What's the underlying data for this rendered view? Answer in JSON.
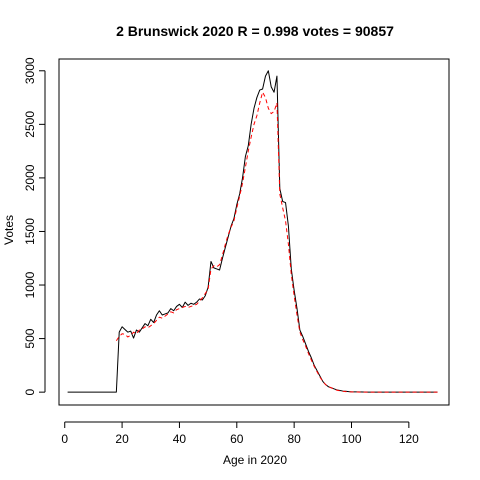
{
  "chart_data": {
    "type": "line",
    "title": "2 Brunswick 2020 R = 0.998 votes = 90857",
    "xlabel": "Age in 2020",
    "ylabel": "Votes",
    "xlim": [
      -2,
      134
    ],
    "ylim": [
      -120,
      3110
    ],
    "x_ticks": [
      "0",
      "20",
      "40",
      "60",
      "80",
      "100",
      "120"
    ],
    "y_ticks": [
      "0",
      "500",
      "1000",
      "1500",
      "2000",
      "2500",
      "3000"
    ],
    "grid": false,
    "colors": {
      "observed": "#000000",
      "predicted": "#ff0000"
    },
    "series": [
      {
        "style": "solid",
        "x": [
          1,
          18,
          19,
          20,
          21,
          22,
          23,
          24,
          25,
          26,
          27,
          28,
          29,
          30,
          31,
          32,
          33,
          34,
          35,
          36,
          37,
          38,
          39,
          40,
          41,
          42,
          43,
          44,
          45,
          46,
          47,
          48,
          49,
          50,
          51,
          52,
          53,
          54,
          55,
          56,
          57,
          58,
          59,
          60,
          61,
          62,
          63,
          64,
          65,
          66,
          67,
          68,
          69,
          70,
          71,
          72,
          73,
          74,
          75,
          76,
          77,
          78,
          79,
          80,
          81,
          82,
          83,
          84,
          85,
          86,
          87,
          88,
          89,
          90,
          91,
          92,
          93,
          94,
          95,
          96,
          97,
          98,
          99,
          100,
          102,
          104,
          106,
          110,
          115,
          120,
          125,
          130
        ],
        "y": [
          0,
          0,
          560,
          610,
          585,
          560,
          570,
          505,
          580,
          560,
          600,
          640,
          620,
          680,
          650,
          720,
          760,
          720,
          730,
          740,
          780,
          760,
          800,
          820,
          790,
          840,
          810,
          830,
          820,
          840,
          870,
          860,
          900,
          980,
          1220,
          1160,
          1150,
          1140,
          1250,
          1350,
          1450,
          1550,
          1620,
          1750,
          1850,
          2000,
          2200,
          2300,
          2500,
          2650,
          2750,
          2820,
          2830,
          2950,
          3000,
          2850,
          2800,
          2950,
          1900,
          1780,
          1770,
          1550,
          1150,
          950,
          780,
          580,
          520,
          450,
          380,
          320,
          250,
          200,
          150,
          100,
          70,
          50,
          40,
          30,
          20,
          15,
          10,
          8,
          5,
          3,
          2,
          1,
          0,
          0,
          0,
          0,
          0,
          0
        ]
      },
      {
        "style": "dashed",
        "x": [
          18,
          19,
          20,
          21,
          22,
          23,
          24,
          25,
          26,
          27,
          28,
          29,
          30,
          31,
          32,
          33,
          34,
          35,
          36,
          37,
          38,
          39,
          40,
          41,
          42,
          43,
          44,
          45,
          46,
          47,
          48,
          49,
          50,
          51,
          52,
          53,
          54,
          55,
          56,
          57,
          58,
          59,
          60,
          61,
          62,
          63,
          64,
          65,
          66,
          67,
          68,
          69,
          70,
          71,
          72,
          73,
          74,
          75,
          76,
          77,
          78,
          79,
          80,
          81,
          82,
          83,
          84,
          85,
          86,
          87,
          88,
          89,
          90,
          91,
          92,
          93,
          94,
          95,
          96,
          97,
          98,
          99,
          100,
          102,
          104,
          106,
          110,
          115,
          120,
          125,
          130
        ],
        "y": [
          480,
          520,
          545,
          540,
          515,
          530,
          560,
          545,
          580,
          590,
          610,
          600,
          620,
          640,
          670,
          700,
          690,
          710,
          730,
          750,
          740,
          770,
          780,
          790,
          800,
          790,
          800,
          810,
          820,
          850,
          880,
          920,
          960,
          1150,
          1180,
          1170,
          1190,
          1280,
          1380,
          1470,
          1540,
          1600,
          1720,
          1830,
          1950,
          2100,
          2250,
          2380,
          2500,
          2580,
          2700,
          2800,
          2750,
          2650,
          2600,
          2620,
          2700,
          1850,
          1720,
          1600,
          1380,
          1100,
          900,
          720,
          560,
          490,
          430,
          360,
          300,
          240,
          190,
          140,
          100,
          70,
          50,
          40,
          28,
          18,
          12,
          8,
          5,
          3,
          2,
          1,
          0,
          0,
          0,
          0,
          0,
          0,
          0
        ]
      }
    ]
  }
}
